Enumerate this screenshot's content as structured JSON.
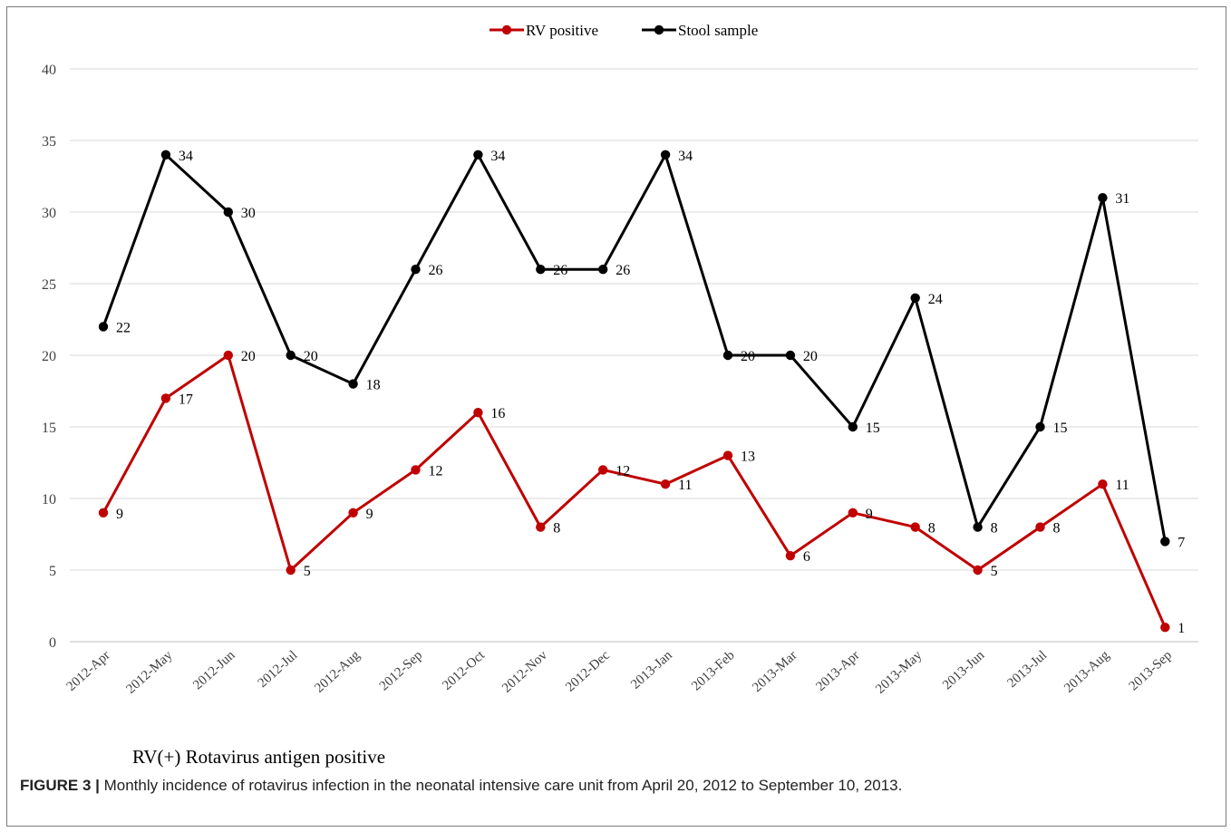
{
  "chart_data": {
    "type": "line",
    "categories": [
      "2012-Apr",
      "2012-May",
      "2012-Jun",
      "2012-Jul",
      "2012-Aug",
      "2012-Sep",
      "2012-Oct",
      "2012-Nov",
      "2012-Dec",
      "2013-Jan",
      "2013-Feb",
      "2013-Mar",
      "2013-Apr",
      "2013-May",
      "2013-Jun",
      "2013-Jul",
      "2013-Aug",
      "2013-Sep"
    ],
    "series": [
      {
        "name": "RV positive",
        "color": "#c00000",
        "values": [
          9,
          17,
          20,
          5,
          9,
          12,
          16,
          8,
          12,
          11,
          13,
          6,
          9,
          8,
          5,
          8,
          11,
          1
        ]
      },
      {
        "name": "Stool sample",
        "color": "#000000",
        "values": [
          22,
          34,
          30,
          20,
          18,
          26,
          34,
          26,
          26,
          34,
          20,
          20,
          15,
          24,
          8,
          15,
          31,
          7
        ]
      }
    ],
    "ylim": [
      0,
      40
    ],
    "yticks": [
      0,
      5,
      10,
      15,
      20,
      25,
      30,
      35,
      40
    ],
    "grid": true,
    "legend": "top-center",
    "data_labels": true,
    "xlabel": "",
    "ylabel": ""
  },
  "footnote": "RV(+) Rotavirus  antigen  positive",
  "caption": {
    "label": "FIGURE 3 |",
    "text": " Monthly incidence of rotavirus infection in the neonatal intensive care unit from April 20, 2012 to September 10, 2013."
  }
}
